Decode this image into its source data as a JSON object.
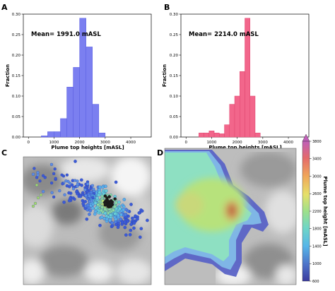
{
  "chart_data": [
    {
      "panel": "A",
      "type": "bar",
      "bar_color": "#7b7ff0",
      "bar_edge": "#5a5fe0",
      "bin_width": 250,
      "bin_starts": [
        500,
        750,
        1000,
        1250,
        1500,
        1750,
        2000,
        2250,
        2500,
        2750
      ],
      "values": [
        0.003,
        0.013,
        0.013,
        0.045,
        0.122,
        0.17,
        0.29,
        0.22,
        0.08,
        0.01
      ],
      "annotation": "Mean= 1991.0 mASL",
      "xlabel": "Plume top heights [mASL]",
      "ylabel": "Fraction",
      "xlim": [
        -200,
        4800
      ],
      "ylim": [
        0,
        0.3
      ],
      "xticks": [
        "0",
        "1000",
        "2000",
        "3000",
        "4000"
      ],
      "yticks": [
        "0.00",
        "0.05",
        "0.10",
        "0.15",
        "0.20",
        "0.25",
        "0.30"
      ]
    },
    {
      "panel": "B",
      "type": "bar",
      "bar_color": "#f2668b",
      "bar_edge": "#e0456f",
      "bin_width": 200,
      "bin_starts": [
        500,
        700,
        900,
        1100,
        1300,
        1500,
        1700,
        1900,
        2100,
        2300,
        2500,
        2700
      ],
      "values": [
        0.01,
        0.01,
        0.015,
        0.01,
        0.008,
        0.03,
        0.08,
        0.1,
        0.16,
        0.29,
        0.1,
        0.01
      ],
      "annotation": "Mean= 2214.0 mASL",
      "xlabel": "Plume top heights [mASL]",
      "ylabel": "Fraction",
      "xlim": [
        -200,
        4800
      ],
      "ylim": [
        0,
        0.3
      ],
      "xticks": [
        "0",
        "1000",
        "2000",
        "3000",
        "4000"
      ],
      "yticks": [
        "0.00",
        "0.05",
        "0.10",
        "0.15",
        "0.20",
        "0.25",
        "0.30"
      ]
    },
    {
      "panel": "C",
      "type": "scatter",
      "description_points": "plume-top height points over grey topography"
    },
    {
      "panel": "D",
      "type": "heatmap",
      "colorbar": {
        "label": "Plume top height [mASL]",
        "ticks": [
          "600",
          "1000",
          "1400",
          "1800",
          "2200",
          "2600",
          "3000",
          "3400",
          "3800"
        ],
        "min": 600,
        "max": 3800
      }
    }
  ]
}
